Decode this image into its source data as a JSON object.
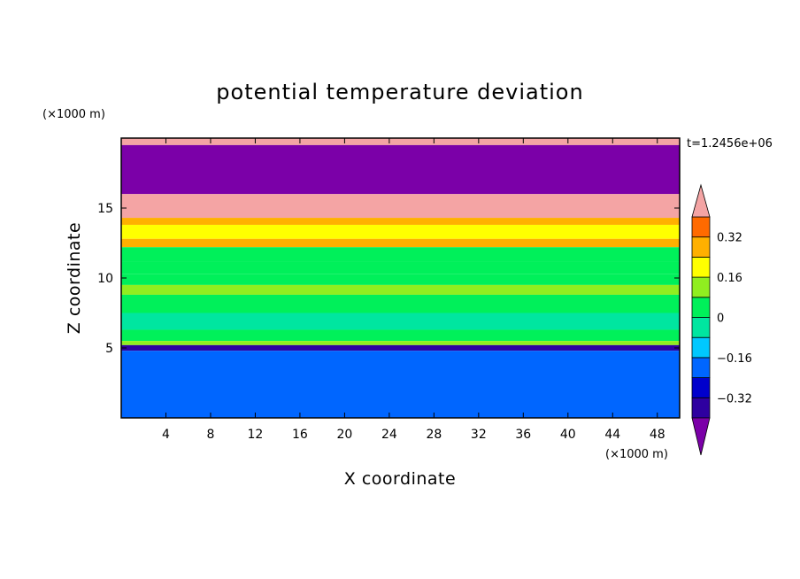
{
  "chart_data": {
    "type": "heatmap",
    "title": "potential temperature deviation",
    "xlabel": "X coordinate",
    "ylabel": "Z coordinate",
    "x_unit_label": "(×1000 m)",
    "y_unit_label": "(×1000 m)",
    "time_label": "t=1.2456e+06",
    "xlim": [
      0,
      50
    ],
    "ylim": [
      0,
      20
    ],
    "x_ticks": [
      4,
      8,
      12,
      16,
      20,
      24,
      28,
      32,
      36,
      40,
      44,
      48
    ],
    "y_ticks": [
      5,
      10,
      15
    ],
    "colorbar": {
      "levels": [
        -0.4,
        -0.32,
        -0.24,
        -0.16,
        -0.08,
        0,
        0.08,
        0.16,
        0.24,
        0.32,
        0.4
      ],
      "tick_labels": [
        "0.32",
        "0.16",
        "0",
        "−0.16",
        "−0.32"
      ],
      "tick_values": [
        0.32,
        0.16,
        0,
        -0.16,
        -0.32
      ],
      "colors": [
        "#7b00a8",
        "#2e00a0",
        "#0000cc",
        "#0066ff",
        "#00c8ff",
        "#00e6a0",
        "#00f05a",
        "#90ee20",
        "#ffff00",
        "#ffb000",
        "#ff6a00",
        "#ff2020",
        "#f4a4a4"
      ],
      "extend": "both"
    },
    "bands": [
      {
        "z_range": [
          19.5,
          20
        ],
        "value": 0.45
      },
      {
        "z_range": [
          16,
          19.5
        ],
        "value": -0.45
      },
      {
        "z_range": [
          14.3,
          16
        ],
        "value": 0.45
      },
      {
        "z_range": [
          13.8,
          14.3
        ],
        "value": 0.3
      },
      {
        "z_range": [
          12.8,
          13.8
        ],
        "value": 0.2
      },
      {
        "z_range": [
          12.2,
          12.8
        ],
        "value": 0.24
      },
      {
        "z_range": [
          11.2,
          12.2
        ],
        "value": 0.04
      },
      {
        "z_range": [
          10.3,
          11.2
        ],
        "value": 0.02
      },
      {
        "z_range": [
          9.5,
          10.3
        ],
        "value": 0.06
      },
      {
        "z_range": [
          8.8,
          9.5
        ],
        "value": 0.14
      },
      {
        "z_range": [
          7.5,
          8.8
        ],
        "value": 0.0
      },
      {
        "z_range": [
          6.3,
          7.5
        ],
        "value": -0.02
      },
      {
        "z_range": [
          5.5,
          6.3
        ],
        "value": 0.03
      },
      {
        "z_range": [
          5.2,
          5.5
        ],
        "value": 0.15
      },
      {
        "z_range": [
          4.8,
          5.2
        ],
        "value": -0.4
      },
      {
        "z_range": [
          0,
          4.8
        ],
        "value": -0.2
      }
    ]
  }
}
